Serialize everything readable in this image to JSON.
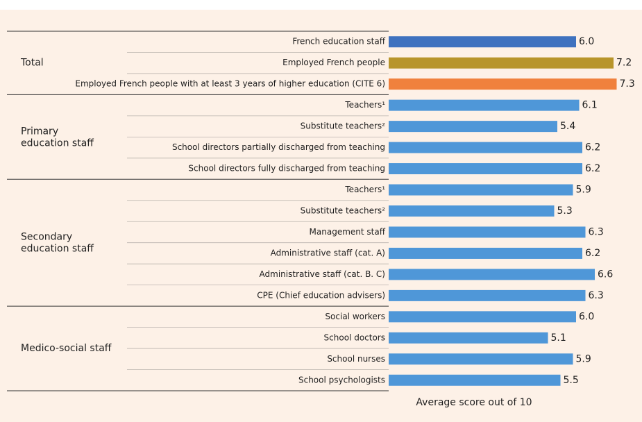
{
  "chart_data": {
    "type": "bar",
    "x_label": "Average score out of 10",
    "groups": [
      {
        "name": "Total",
        "categories": [
          "French education staff",
          "Employed French people",
          "Employed French people with at least 3 years of higher education (CITE 6)"
        ],
        "values": [
          6.0,
          7.2,
          7.3
        ],
        "value_labels": [
          "6.0",
          "7.2",
          "7.3"
        ],
        "colors": [
          "#3f72bf",
          "#b8952b",
          "#f0813d"
        ]
      },
      {
        "name": "Primary education staff",
        "categories": [
          "Teachers¹",
          "Substitute teachers²",
          "School directors partially discharged from teaching",
          "School directors fully discharged from teaching"
        ],
        "values": [
          6.1,
          5.4,
          6.2,
          6.2
        ],
        "value_labels": [
          "6.1",
          "5.4",
          "6.2",
          "6.2"
        ],
        "colors": [
          "#4f97d8",
          "#4f97d8",
          "#4f97d8",
          "#4f97d8"
        ]
      },
      {
        "name": "Secondary education staff",
        "categories": [
          "Teachers¹",
          "Substitute teachers²",
          "Management staff",
          "Administrative staff (cat. A)",
          "Administrative staff (cat. B. C)",
          "CPE (Chief education advisers)"
        ],
        "values": [
          5.9,
          5.3,
          6.3,
          6.2,
          6.6,
          6.3
        ],
        "value_labels": [
          "5.9",
          "5.3",
          "6.3",
          "6.2",
          "6.6",
          "6.3"
        ],
        "colors": [
          "#4f97d8",
          "#4f97d8",
          "#4f97d8",
          "#4f97d8",
          "#4f97d8",
          "#4f97d8"
        ]
      },
      {
        "name": "Medico-social staff",
        "categories": [
          "Social workers",
          "School doctors",
          "School nurses",
          "School psychologists"
        ],
        "values": [
          6.0,
          5.1,
          5.9,
          5.5
        ],
        "value_labels": [
          "6.0",
          "5.1",
          "5.9",
          "5.5"
        ],
        "colors": [
          "#4f97d8",
          "#4f97d8",
          "#4f97d8",
          "#4f97d8"
        ]
      }
    ]
  }
}
